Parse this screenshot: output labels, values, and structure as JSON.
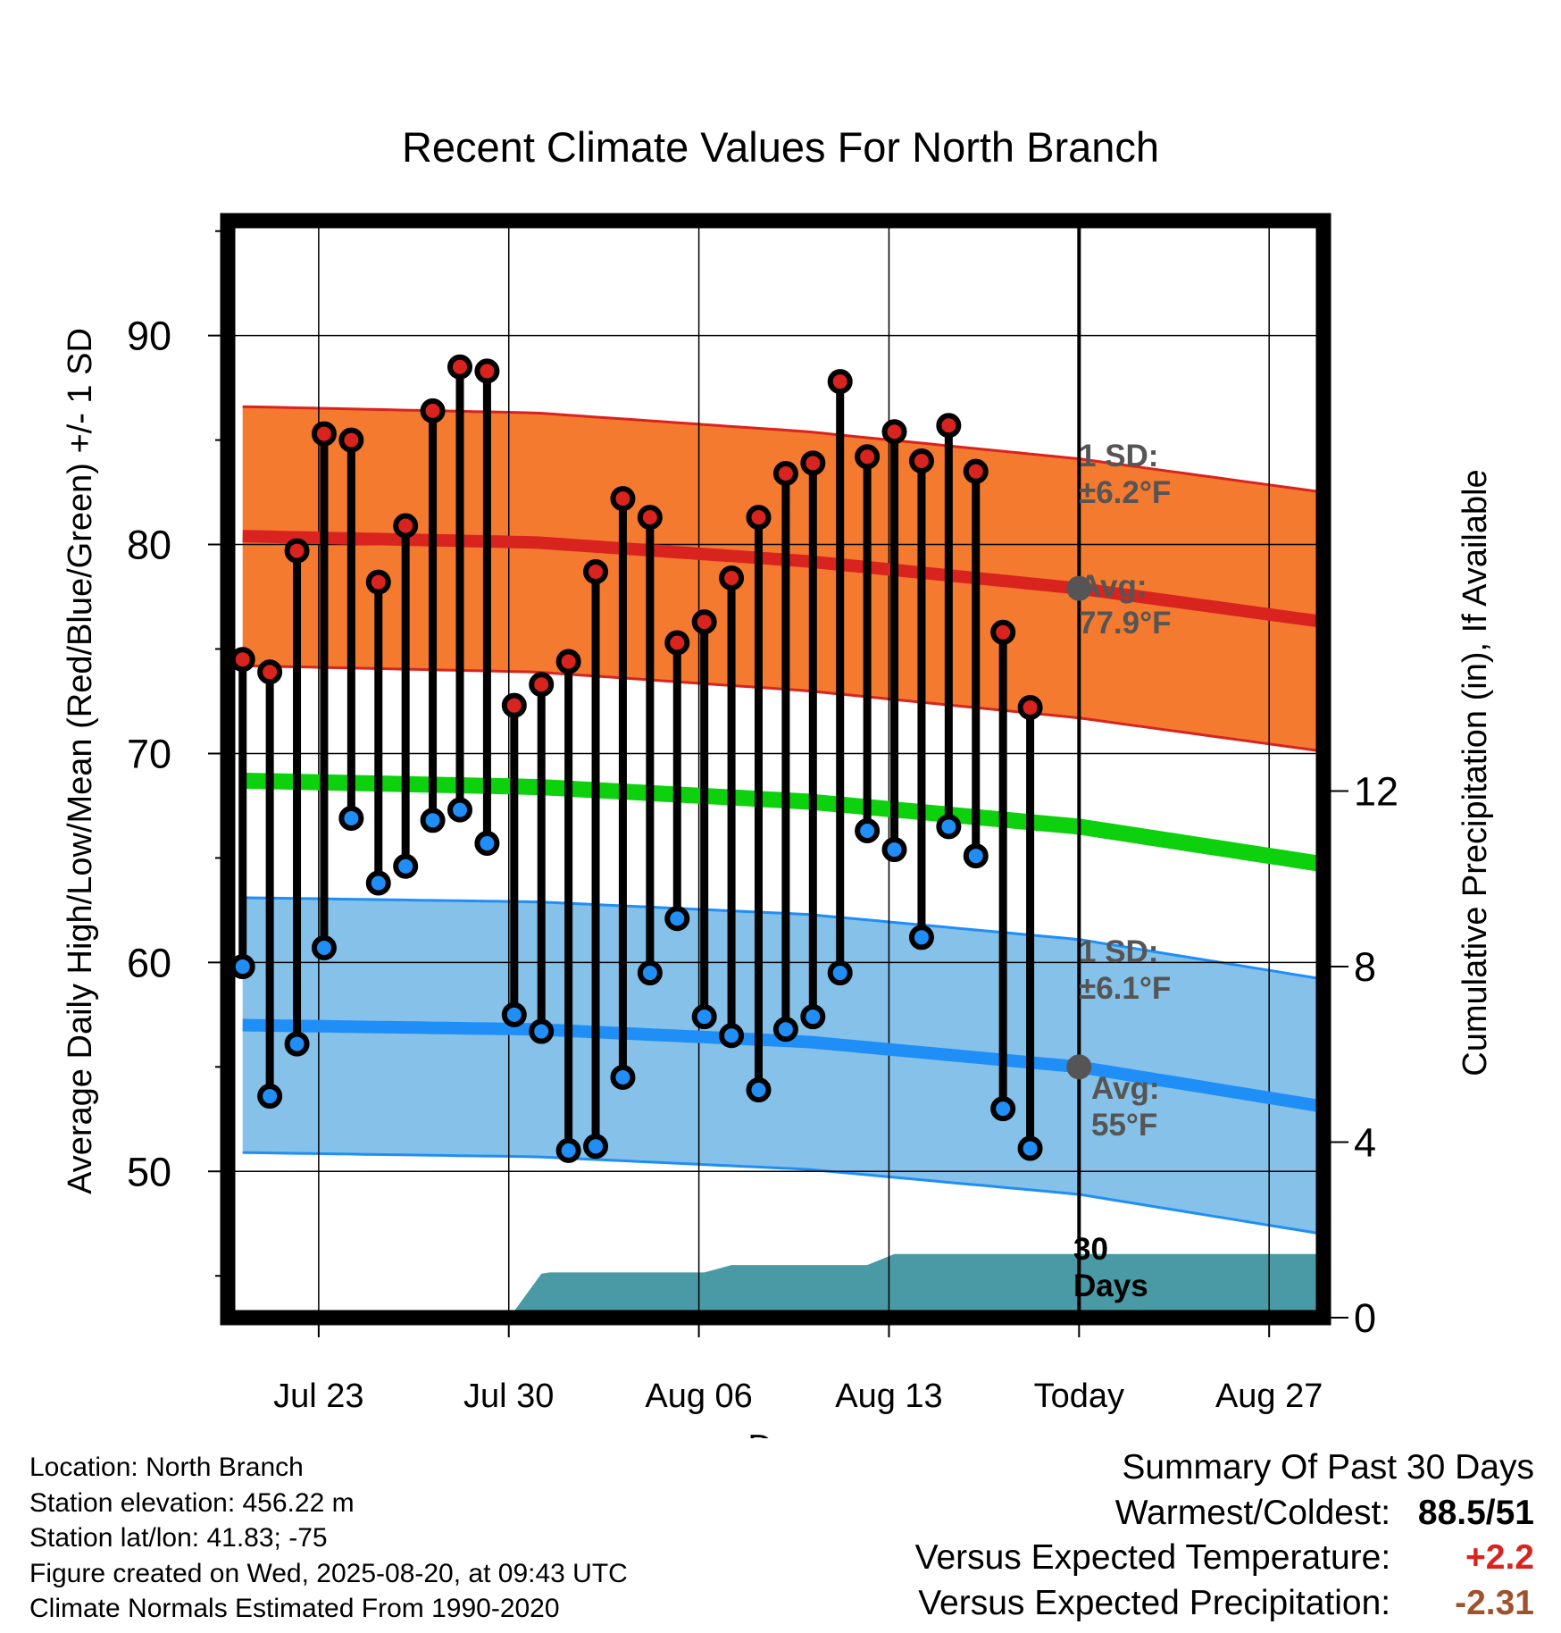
{
  "chart_data": {
    "type": "line",
    "title": "Recent Climate Values For North Branch",
    "xlabel": "Day",
    "ylabel": "Average Daily High/Low/Mean (Red/Blue/Green) +/- 1 SD",
    "y2label": "Cumulative Precipitation (in), If Available",
    "x_ticks": [
      {
        "day": 2,
        "label": "Jul 23"
      },
      {
        "day": 9,
        "label": "Jul 30"
      },
      {
        "day": 16,
        "label": "Aug 06"
      },
      {
        "day": 23,
        "label": "Aug 13"
      },
      {
        "day": 30,
        "label": "Today"
      },
      {
        "day": 37,
        "label": "Aug 27"
      }
    ],
    "y_ticks": [
      50,
      60,
      70,
      80,
      90
    ],
    "y2_ticks": [
      0,
      4,
      8,
      12
    ],
    "ylim": [
      43,
      95.5
    ],
    "y2lim": [
      0,
      25
    ],
    "today_day": 30,
    "high_normal": {
      "name": "Avg High",
      "x": [
        -0.8,
        10,
        20,
        30,
        39
      ],
      "values": [
        80.4,
        80.1,
        79.2,
        77.9,
        76.3
      ],
      "sd": 6.2
    },
    "low_normal": {
      "name": "Avg Low",
      "x": [
        -0.8,
        10,
        20,
        30,
        39
      ],
      "values": [
        57.0,
        56.8,
        56.2,
        55.0,
        53.1
      ],
      "sd": 6.1
    },
    "mean_normal": {
      "name": "Mean",
      "x": [
        -0.8,
        10,
        20,
        30,
        39
      ],
      "values": [
        68.7,
        68.4,
        67.7,
        66.5,
        64.7
      ]
    },
    "daily_x": [
      -0.8,
      0.2,
      1.2,
      2.2,
      3.2,
      4.2,
      5.2,
      6.2,
      7.2,
      8.2,
      9.2,
      10.2,
      11.2,
      12.2,
      13.2,
      14.2,
      15.2,
      16.2,
      17.2,
      18.2,
      19.2,
      20.2,
      21.2,
      22.2,
      23.2,
      24.2,
      25.2,
      26.2,
      27.2,
      28.2
    ],
    "series": [
      {
        "name": "High",
        "color": "#d9231f",
        "values": [
          74.5,
          73.9,
          79.7,
          85.3,
          85.0,
          78.2,
          80.9,
          86.4,
          88.5,
          88.3,
          72.3,
          73.3,
          74.4,
          78.7,
          82.2,
          81.3,
          75.3,
          76.3,
          78.4,
          81.3,
          83.4,
          83.9,
          87.8,
          84.2,
          85.4,
          84.0,
          85.7,
          83.5,
          75.8,
          72.2
        ]
      },
      {
        "name": "Low",
        "color": "#1f8ef7",
        "values": [
          59.8,
          53.6,
          56.1,
          60.7,
          66.9,
          63.8,
          64.6,
          66.8,
          67.3,
          65.7,
          57.5,
          56.7,
          51.0,
          51.2,
          54.5,
          59.5,
          62.1,
          57.4,
          56.5,
          53.9,
          56.8,
          57.4,
          59.5,
          66.3,
          65.4,
          61.2,
          66.5,
          65.1,
          53.0,
          51.1
        ]
      }
    ],
    "precip_cumulative": {
      "color": "#4a9aa5",
      "x": [
        -0.8,
        5.2,
        5.4,
        6.2,
        7.2,
        9.2,
        10.2,
        10.5,
        12.2,
        15.2,
        16.2,
        17.2,
        19.2,
        21.2,
        22.2,
        23.2,
        24.2,
        26.2,
        28.2,
        30.0,
        39.0
      ],
      "values": [
        0.0,
        0.0,
        0.1,
        0.15,
        0.15,
        0.15,
        1.0,
        1.03,
        1.03,
        1.03,
        1.03,
        1.2,
        1.2,
        1.2,
        1.2,
        1.45,
        1.45,
        1.45,
        1.45,
        1.45,
        1.45
      ]
    },
    "annotations": {
      "high_sd": [
        "1 SD:",
        "±6.2°F"
      ],
      "high_avg": [
        "Avg:",
        "77.9°F"
      ],
      "low_sd": [
        "1 SD:",
        "±6.1°F"
      ],
      "low_avg": [
        "Avg:",
        "55°F"
      ],
      "days": [
        "30",
        "Days"
      ]
    },
    "colors": {
      "high_band": "#f47a30",
      "high_edge": "#d9231f",
      "low_band": "#85c1e8",
      "low_edge": "#1f8ef7",
      "mean": "#0cd10c",
      "annotation": "#555555"
    }
  },
  "info": {
    "location": "Location: North Branch",
    "elevation": "Station elevation: 456.22 m",
    "latlon": "Station lat/lon: 41.83; -75",
    "created": "Figure created on Wed, 2025-08-20, at 09:43 UTC",
    "normals": "Climate Normals Estimated From 1990-2020"
  },
  "summary": {
    "title": "Summary Of Past 30 Days",
    "warmest_label": "Warmest/Coldest:",
    "warmest_value": "88.5/51",
    "temp_label": "Versus Expected Temperature:",
    "temp_value": "+2.2",
    "temp_color": "#d9231f",
    "precip_label": "Versus Expected Precipitation:",
    "precip_value": "-2.31",
    "precip_color": "#a0522d"
  }
}
